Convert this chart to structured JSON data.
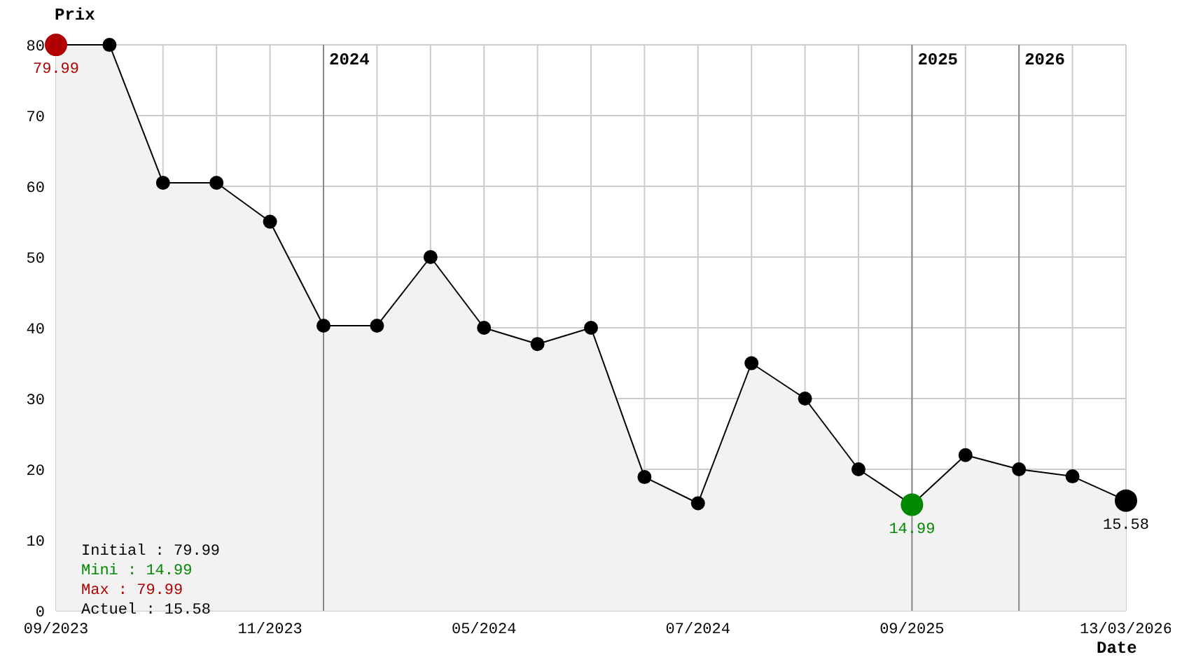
{
  "chart_data": {
    "type": "area",
    "xlabel": "Date",
    "ylabel": "Prix",
    "categories": [
      "09/2023",
      null,
      null,
      null,
      "11/2023",
      null,
      null,
      null,
      "05/2024",
      null,
      null,
      null,
      "07/2024",
      null,
      null,
      null,
      "09/2025",
      null,
      null,
      null,
      "13/03/2026"
    ],
    "ylim": [
      0,
      80
    ],
    "yticks": [
      0,
      10,
      20,
      30,
      40,
      50,
      60,
      70,
      80
    ],
    "series": [
      {
        "color": "#000000",
        "values": [
          79.99,
          79.99,
          60.5,
          60.5,
          55,
          40.3,
          40.3,
          50,
          40,
          37.7,
          40,
          18.9,
          15.2,
          35,
          30,
          20,
          14.99,
          22,
          20,
          19,
          15.58
        ],
        "colors": [
          "#b00000",
          "#000000",
          "#000000",
          "#000000",
          "#000000",
          "#000000",
          "#000000",
          "#000000",
          "#000000",
          "#000000",
          "#000000",
          "#000000",
          "#000000",
          "#000000",
          "#000000",
          "#000000",
          "#008800",
          "#000000",
          "#000000",
          "#000000",
          "#000000"
        ],
        "value_labels": [
          "79.99",
          null,
          null,
          null,
          null,
          null,
          null,
          null,
          null,
          null,
          null,
          null,
          null,
          null,
          null,
          null,
          "14.99",
          null,
          null,
          null,
          "15.58"
        ]
      }
    ],
    "annotations": [
      "2024",
      "2025",
      "2026",
      "Initial : 79.99",
      "Mini : 14.99",
      "Max : 79.99",
      "Actuel : 15.58"
    ],
    "grid": true,
    "legend": false,
    "marker": "circle"
  }
}
